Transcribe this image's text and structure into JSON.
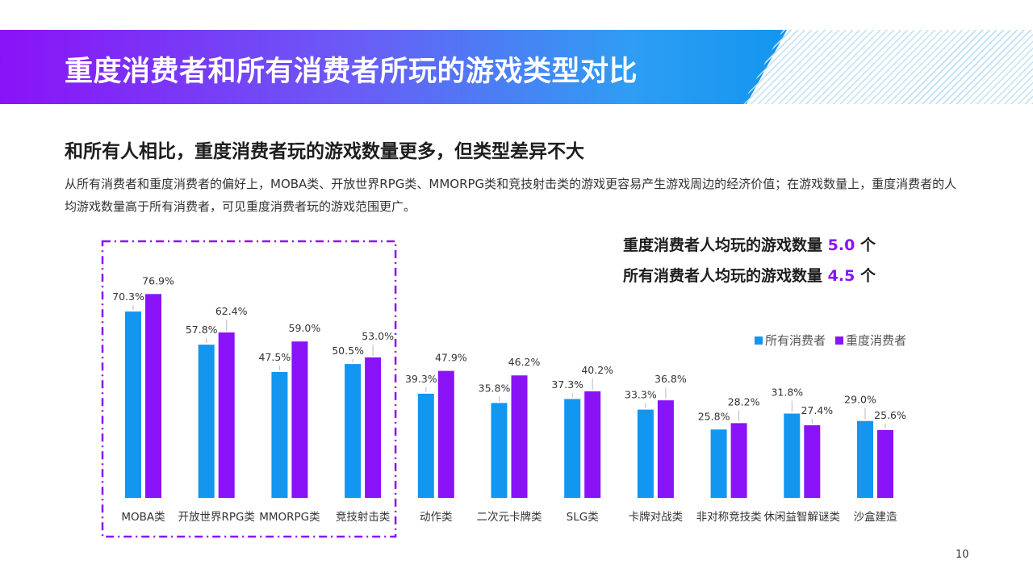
{
  "header": {
    "title": "重度消费者和所有消费者所玩的游戏类型对比"
  },
  "subtitle": "和所有人相比，重度消费者玩的游戏数量更多，但类型差异不大",
  "description": "从所有消费者和重度消费者的偏好上，MOBA类、开放世界RPG类、MMORPG类和竞技射击类的游戏更容易产生游戏周边的经济价值；在游戏数量上，重度消费者的人均游戏数量高于所有消费者，可见重度消费者玩的游戏范围更广。",
  "stats": [
    {
      "label": "重度消费者人均玩的游戏数量",
      "value": "5.0",
      "unit": "个"
    },
    {
      "label": "所有消费者人均玩的游戏数量",
      "value": "4.5",
      "unit": "个"
    }
  ],
  "page_number": "10",
  "colors": {
    "all_consumers": "#1296f0",
    "heavy_consumers": "#8a12f7",
    "highlight_box": "#8a12f7"
  },
  "chart_data": {
    "type": "bar",
    "categories": [
      "MOBA类",
      "开放世界RPG类",
      "MMORPG类",
      "竞技射击类",
      "动作类",
      "二次元卡牌类",
      "SLG类",
      "卡牌对战类",
      "非对称竞技类",
      "休闲益智解谜类",
      "沙盒建造"
    ],
    "series": [
      {
        "name": "所有消费者",
        "values": [
          70.3,
          57.8,
          47.5,
          50.5,
          39.3,
          35.8,
          37.3,
          33.3,
          25.8,
          31.8,
          29.0
        ],
        "labels": [
          "70.3%",
          "57.8%",
          "47.5%",
          "50.5%",
          "39.3%",
          "35.8%",
          "37.3%",
          "33.3%",
          "25.8%",
          "31.8%",
          "29.0%"
        ]
      },
      {
        "name": "重度消费者",
        "values": [
          76.9,
          62.4,
          59.0,
          53.0,
          47.9,
          46.2,
          40.2,
          36.8,
          28.2,
          27.4,
          25.6
        ],
        "labels": [
          "76.9%",
          "62.4%",
          "59.0%",
          "53.0%",
          "47.9%",
          "46.2%",
          "40.2%",
          "36.8%",
          "28.2%",
          "27.4%",
          "25.6%"
        ]
      }
    ],
    "ylim": [
      0,
      100
    ],
    "grid": false,
    "legend": "top-right",
    "highlighted_categories": [
      "MOBA类",
      "开放世界RPG类",
      "MMORPG类",
      "竞技射击类"
    ]
  }
}
